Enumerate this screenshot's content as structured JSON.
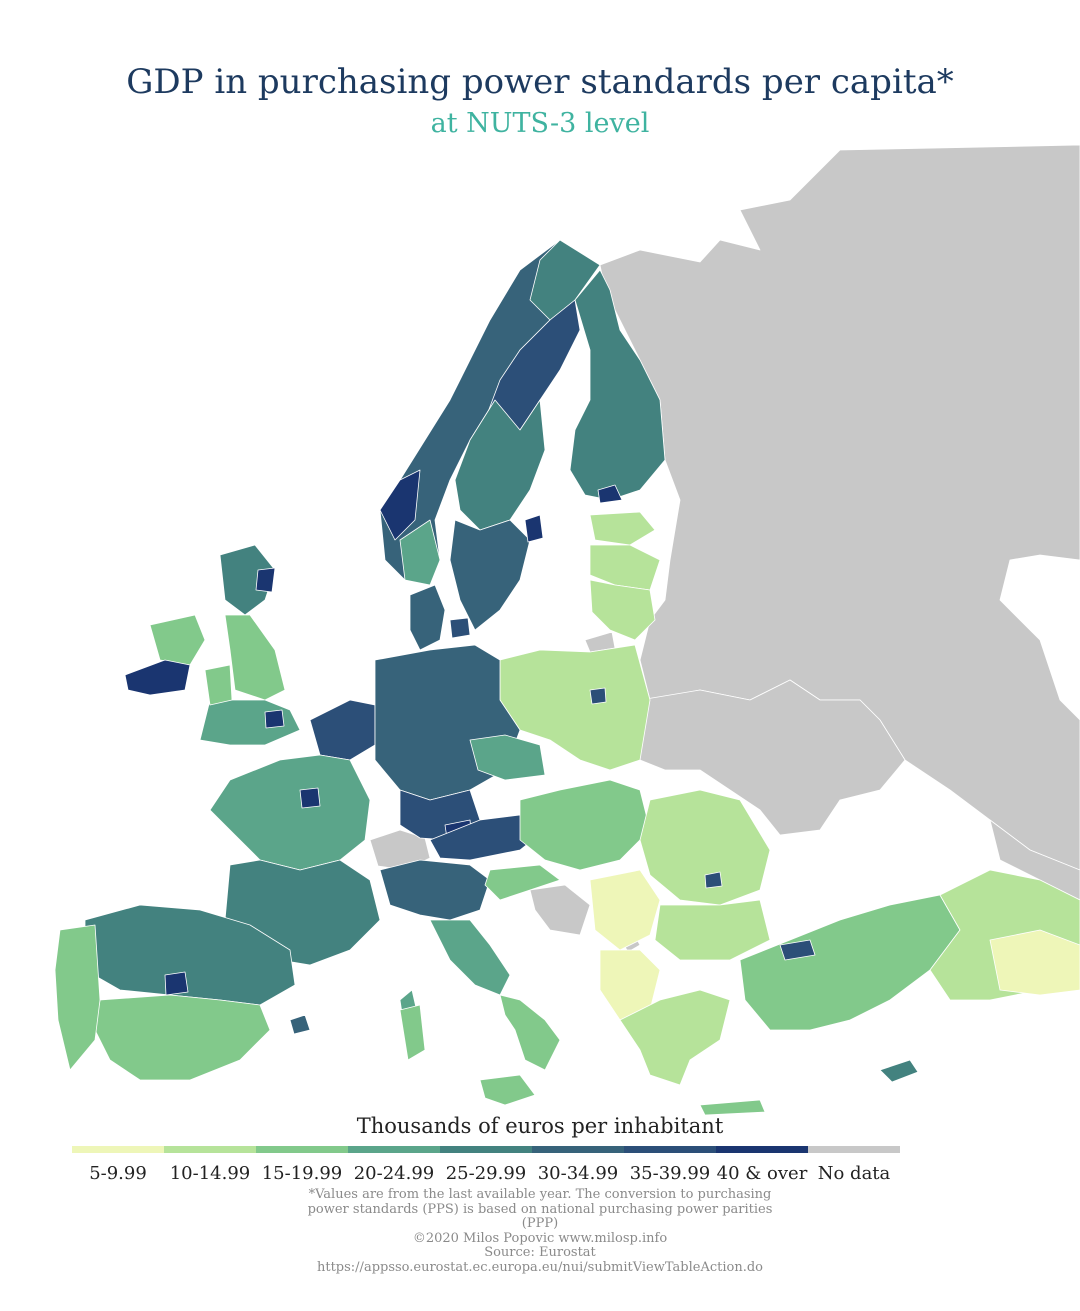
{
  "title": "GDP in purchasing power standards per capita*",
  "subtitle": "at NUTS-3 level",
  "legend": {
    "title": "Thousands of euros per inhabitant",
    "items": [
      {
        "label": "5-9.99",
        "color": "#eef6b8"
      },
      {
        "label": "10-14.99",
        "color": "#b6e39a"
      },
      {
        "label": "15-19.99",
        "color": "#82c98b"
      },
      {
        "label": "20-24.99",
        "color": "#5ba58a"
      },
      {
        "label": "25-29.99",
        "color": "#43827f"
      },
      {
        "label": "30-34.99",
        "color": "#37637a"
      },
      {
        "label": "35-39.99",
        "color": "#2c4f78"
      },
      {
        "label": "40 & over",
        "color": "#1a3570"
      },
      {
        "label": "No data",
        "color": "#c8c8c8"
      }
    ]
  },
  "footnote": {
    "note": "*Values are from the last available year. The conversion to purchasing power standards (PPS) is based on national purchasing power parities (PPP)",
    "credit": "©2020 Milos Popovic www.milosp.info",
    "source": "Source: Eurostat",
    "url": "https://appsso.eurostat.ec.europa.eu/nui/submitViewTableAction.do"
  },
  "colors": {
    "sea": "#ffffff",
    "border": "#ffffff"
  }
}
